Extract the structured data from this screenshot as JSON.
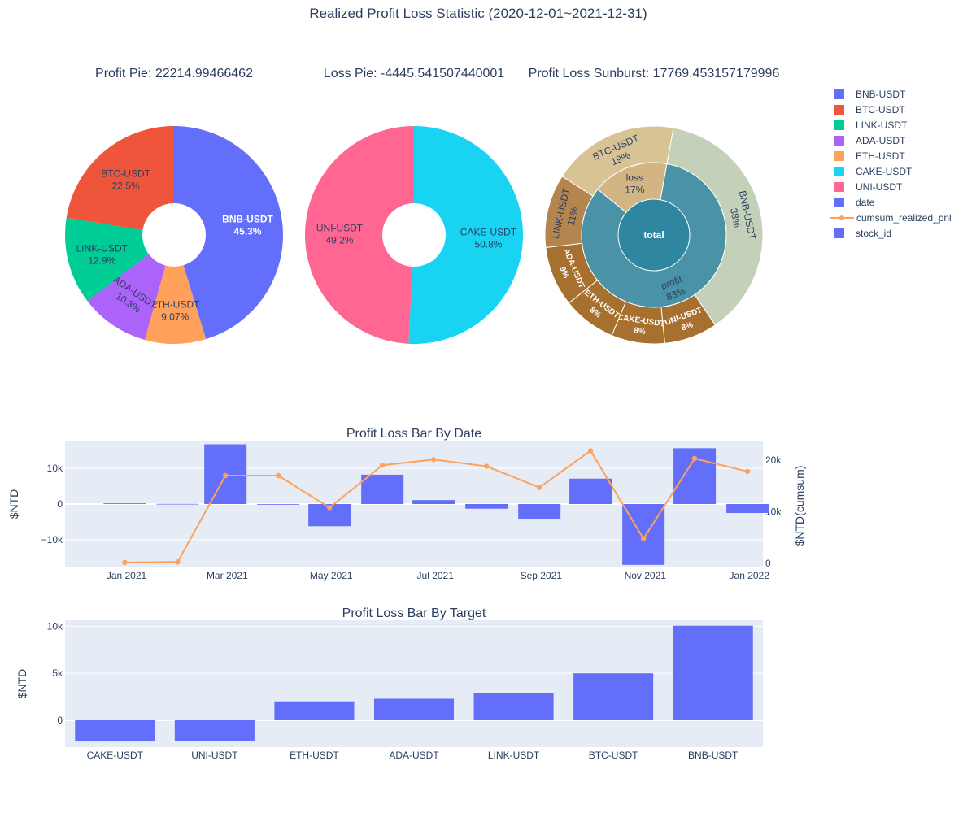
{
  "title": "Realized Profit Loss Statistic (2020-12-01~2021-12-31)",
  "legend": [
    {
      "name": "BNB-USDT",
      "color": "#636EFA",
      "kind": "swatch"
    },
    {
      "name": "BTC-USDT",
      "color": "#EF553B",
      "kind": "swatch"
    },
    {
      "name": "LINK-USDT",
      "color": "#00CC96",
      "kind": "swatch"
    },
    {
      "name": "ADA-USDT",
      "color": "#AB63FA",
      "kind": "swatch"
    },
    {
      "name": "ETH-USDT",
      "color": "#FFA15A",
      "kind": "swatch"
    },
    {
      "name": "CAKE-USDT",
      "color": "#19D3F3",
      "kind": "swatch"
    },
    {
      "name": "UNI-USDT",
      "color": "#FF6692",
      "kind": "swatch"
    },
    {
      "name": "date",
      "color": "#636EFA",
      "kind": "swatch"
    },
    {
      "name": "cumsum_realized_pnl",
      "color": "#FFA15A",
      "kind": "line"
    },
    {
      "name": "stock_id",
      "color": "#636EFA",
      "kind": "swatch"
    }
  ],
  "chart_data": [
    {
      "type": "pie",
      "title": "Profit Pie: 22214.99466462",
      "hole": true,
      "slices": [
        {
          "label": "BNB-USDT",
          "percent": "45.3%",
          "value": 45.3,
          "color": "#636EFA",
          "text_color": "#ffffff"
        },
        {
          "label": "ETH-USDT",
          "percent": "9.07%",
          "value": 9.07,
          "color": "#FFA15A",
          "text_color": "#2a3f5f"
        },
        {
          "label": "ADA-USDT",
          "percent": "10.3%",
          "value": 10.3,
          "color": "#AB63FA",
          "text_color": "#2a3f5f"
        },
        {
          "label": "LINK-USDT",
          "percent": "12.9%",
          "value": 12.9,
          "color": "#00CC96",
          "text_color": "#2a3f5f"
        },
        {
          "label": "BTC-USDT",
          "percent": "22.5%",
          "value": 22.5,
          "color": "#EF553B",
          "text_color": "#2a3f5f"
        }
      ]
    },
    {
      "type": "pie",
      "title": "Loss Pie: -4445.541507440001",
      "hole": true,
      "slices": [
        {
          "label": "CAKE-USDT",
          "percent": "50.8%",
          "value": 50.8,
          "color": "#19D3F3",
          "text_color": "#2a3f5f"
        },
        {
          "label": "UNI-USDT",
          "percent": "49.2%",
          "value": 49.2,
          "color": "#FF6692",
          "text_color": "#2a3f5f"
        }
      ]
    },
    {
      "type": "sunburst",
      "title": "Profit Loss Sunburst: 17769.453157179996",
      "root": {
        "label": "total",
        "color": "#2E86A0"
      },
      "inner": [
        {
          "label": "profit",
          "percent": "83%",
          "value": 83,
          "color": "#4A93A6"
        },
        {
          "label": "loss",
          "percent": "17%",
          "value": 17,
          "color": "#D3B584"
        }
      ],
      "outer": [
        {
          "label": "BNB-USDT",
          "percent": "38%",
          "value": 38,
          "color": "#C4D0B8",
          "text_color": "#2a3f5f"
        },
        {
          "label": "UNI-USDT",
          "percent": "8%",
          "value": 8,
          "color": "#A8702F",
          "text_color": "#ffffff"
        },
        {
          "label": "CAKE-USDT",
          "percent": "8%",
          "value": 8,
          "color": "#A8702F",
          "text_color": "#ffffff"
        },
        {
          "label": "ETH-USDT",
          "percent": "8%",
          "value": 8,
          "color": "#A8702F",
          "text_color": "#ffffff"
        },
        {
          "label": "ADA-USDT",
          "percent": "9%",
          "value": 9,
          "color": "#A8702F",
          "text_color": "#ffffff"
        },
        {
          "label": "LINK-USDT",
          "percent": "11%",
          "value": 11,
          "color": "#B58550",
          "text_color": "#2a3f5f"
        },
        {
          "label": "BTC-USDT",
          "percent": "19%",
          "value": 19,
          "color": "#D8C395",
          "text_color": "#2a3f5f"
        }
      ]
    },
    {
      "type": "bar",
      "title": "Profit Loss Bar By Date",
      "ylabel": "$NTD",
      "y2label": "$NTD(cumsum)",
      "ylim": [
        -17500,
        17500
      ],
      "y2lim": [
        -600,
        23600
      ],
      "xlim": [
        "2020-11-26",
        "2022-01-09"
      ],
      "yticks": [
        {
          "v": 10000,
          "t": "10k"
        },
        {
          "v": 0,
          "t": "0"
        },
        {
          "v": -10000,
          "t": "−10k"
        }
      ],
      "y2ticks": [
        {
          "v": 20000,
          "t": "20k"
        },
        {
          "v": 10000,
          "t": "10k"
        },
        {
          "v": 0,
          "t": "0"
        }
      ],
      "xticks": [
        {
          "d": "2021-01-01",
          "t": "Jan 2021"
        },
        {
          "d": "2021-03-01",
          "t": "Mar 2021"
        },
        {
          "d": "2021-05-01",
          "t": "May 2021"
        },
        {
          "d": "2021-07-01",
          "t": "Jul 2021"
        },
        {
          "d": "2021-09-01",
          "t": "Sep 2021"
        },
        {
          "d": "2021-11-01",
          "t": "Nov 2021"
        },
        {
          "d": "2022-01-01",
          "t": "Jan 2022"
        }
      ],
      "series": [
        {
          "name": "date",
          "color": "#636EFA",
          "points": [
            {
              "x": "2020-12-31",
              "y": 200
            },
            {
              "x": "2021-01-31",
              "y": 50
            },
            {
              "x": "2021-02-28",
              "y": 16700
            },
            {
              "x": "2021-03-31",
              "y": 0
            },
            {
              "x": "2021-04-30",
              "y": -6200
            },
            {
              "x": "2021-05-31",
              "y": 8200
            },
            {
              "x": "2021-06-30",
              "y": 1100
            },
            {
              "x": "2021-07-31",
              "y": -1300
            },
            {
              "x": "2021-08-31",
              "y": -4100
            },
            {
              "x": "2021-09-30",
              "y": 7100
            },
            {
              "x": "2021-10-31",
              "y": -17000
            },
            {
              "x": "2021-11-30",
              "y": 15600
            },
            {
              "x": "2021-12-31",
              "y": -2500
            }
          ]
        },
        {
          "name": "cumsum_realized_pnl",
          "color": "#FFA15A",
          "points": [
            {
              "x": "2020-12-31",
              "y": 200
            },
            {
              "x": "2021-01-31",
              "y": 300
            },
            {
              "x": "2021-02-28",
              "y": 17000
            },
            {
              "x": "2021-03-31",
              "y": 17000
            },
            {
              "x": "2021-04-30",
              "y": 10800
            },
            {
              "x": "2021-05-31",
              "y": 19000
            },
            {
              "x": "2021-06-30",
              "y": 20100
            },
            {
              "x": "2021-07-31",
              "y": 18800
            },
            {
              "x": "2021-08-31",
              "y": 14700
            },
            {
              "x": "2021-09-30",
              "y": 21800
            },
            {
              "x": "2021-10-31",
              "y": 4800
            },
            {
              "x": "2021-11-30",
              "y": 20300
            },
            {
              "x": "2021-12-31",
              "y": 17800
            }
          ]
        }
      ]
    },
    {
      "type": "bar",
      "title": "Profit Loss Bar By Target",
      "ylabel": "$NTD",
      "ylim": [
        -2860,
        10640
      ],
      "yticks": [
        {
          "v": 10000,
          "t": "10k"
        },
        {
          "v": 5000,
          "t": "5k"
        },
        {
          "v": 0,
          "t": "0"
        }
      ],
      "categories": [
        "CAKE-USDT",
        "UNI-USDT",
        "ETH-USDT",
        "ADA-USDT",
        "LINK-USDT",
        "BTC-USDT",
        "BNB-USDT"
      ],
      "values": [
        -2260,
        -2190,
        2010,
        2290,
        2870,
        5000,
        10060
      ],
      "color": "#636EFA"
    }
  ]
}
